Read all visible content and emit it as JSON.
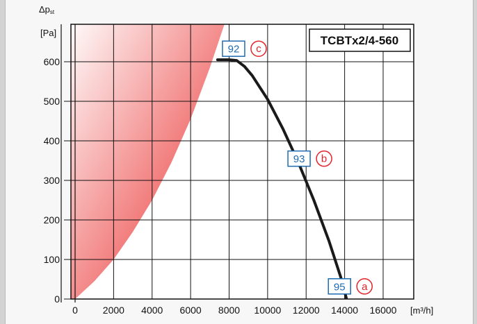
{
  "chart_data": {
    "type": "line",
    "title": "TCBTx2/4-560",
    "ylabel_top": "Δp",
    "ylabel_sub": "st",
    "ylabel_unit": "[Pa]",
    "xlabel": "[m³/h]",
    "xlim": [
      0,
      16000
    ],
    "ylim": [
      0,
      600
    ],
    "xticks": [
      0,
      2000,
      4000,
      6000,
      8000,
      10000,
      12000,
      14000,
      16000
    ],
    "yticks": [
      0,
      100,
      200,
      300,
      400,
      500,
      600
    ],
    "grid": true,
    "series": [
      {
        "type": "fan-curve",
        "color": "#1a1a1a",
        "x": [
          7400,
          8000,
          8400,
          8800,
          9200,
          10000,
          10800,
          11600,
          12400,
          13200,
          13800,
          14100
        ],
        "y": [
          605,
          605,
          603,
          588,
          565,
          505,
          430,
          345,
          250,
          145,
          55,
          0
        ]
      }
    ],
    "stall_region": {
      "color_light": "#ffffff",
      "color_dark": "#e8201f",
      "boundary_x": [
        0,
        1000,
        2000,
        3000,
        4000,
        5000,
        6000,
        7000,
        8000
      ],
      "boundary_y": [
        0,
        45,
        100,
        170,
        250,
        345,
        455,
        585,
        730
      ]
    },
    "markers": [
      {
        "value": "92",
        "letter": "c",
        "x": 9100,
        "y": 633
      },
      {
        "value": "93",
        "letter": "b",
        "x": 12500,
        "y": 355
      },
      {
        "value": "95",
        "letter": "a",
        "x": 14600,
        "y": 32
      }
    ],
    "colors": {
      "box": "#1f6bb0",
      "letter": "#e2232a"
    }
  }
}
